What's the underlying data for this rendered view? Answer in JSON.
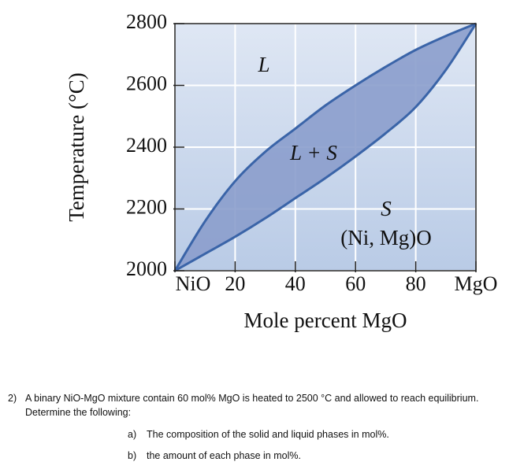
{
  "chart_data": {
    "type": "phase-diagram",
    "xlabel": "Mole percent MgO",
    "ylabel": "Temperature (°C)",
    "x": [
      0,
      10,
      20,
      30,
      40,
      50,
      60,
      70,
      80,
      90,
      100
    ],
    "series": [
      {
        "color": "#3a64a8",
        "values": [
          2000,
          2160,
          2290,
          2385,
          2460,
          2535,
          2600,
          2660,
          2715,
          2760,
          2800
        ]
      },
      {
        "color": "#3a64a8",
        "values": [
          2000,
          2055,
          2110,
          2170,
          2235,
          2300,
          2370,
          2445,
          2530,
          2650,
          2800
        ]
      }
    ],
    "fill": "#8b9dcc",
    "xlim": [
      0,
      100
    ],
    "xticks": [
      {
        "value": 0,
        "label": "NiO"
      },
      20,
      40,
      60,
      80,
      {
        "value": 100,
        "label": "MgO"
      }
    ],
    "ylim": [
      2000,
      2800
    ],
    "yticks": [
      2000,
      2200,
      2400,
      2600,
      2800
    ],
    "grid": true,
    "annotations": [
      "L",
      "L + S",
      "S",
      "(Ni, Mg)O"
    ]
  },
  "question": {
    "number": "2)",
    "text": "A binary NiO-MgO mixture contain 60 mol% MgO is heated to 2500 °C and allowed to reach equilibrium. Determine the following:",
    "items": [
      {
        "marker": "a)",
        "text": "The composition of the solid and liquid phases in mol%."
      },
      {
        "marker": "b)",
        "text": "the amount of each phase in mol%."
      }
    ]
  }
}
